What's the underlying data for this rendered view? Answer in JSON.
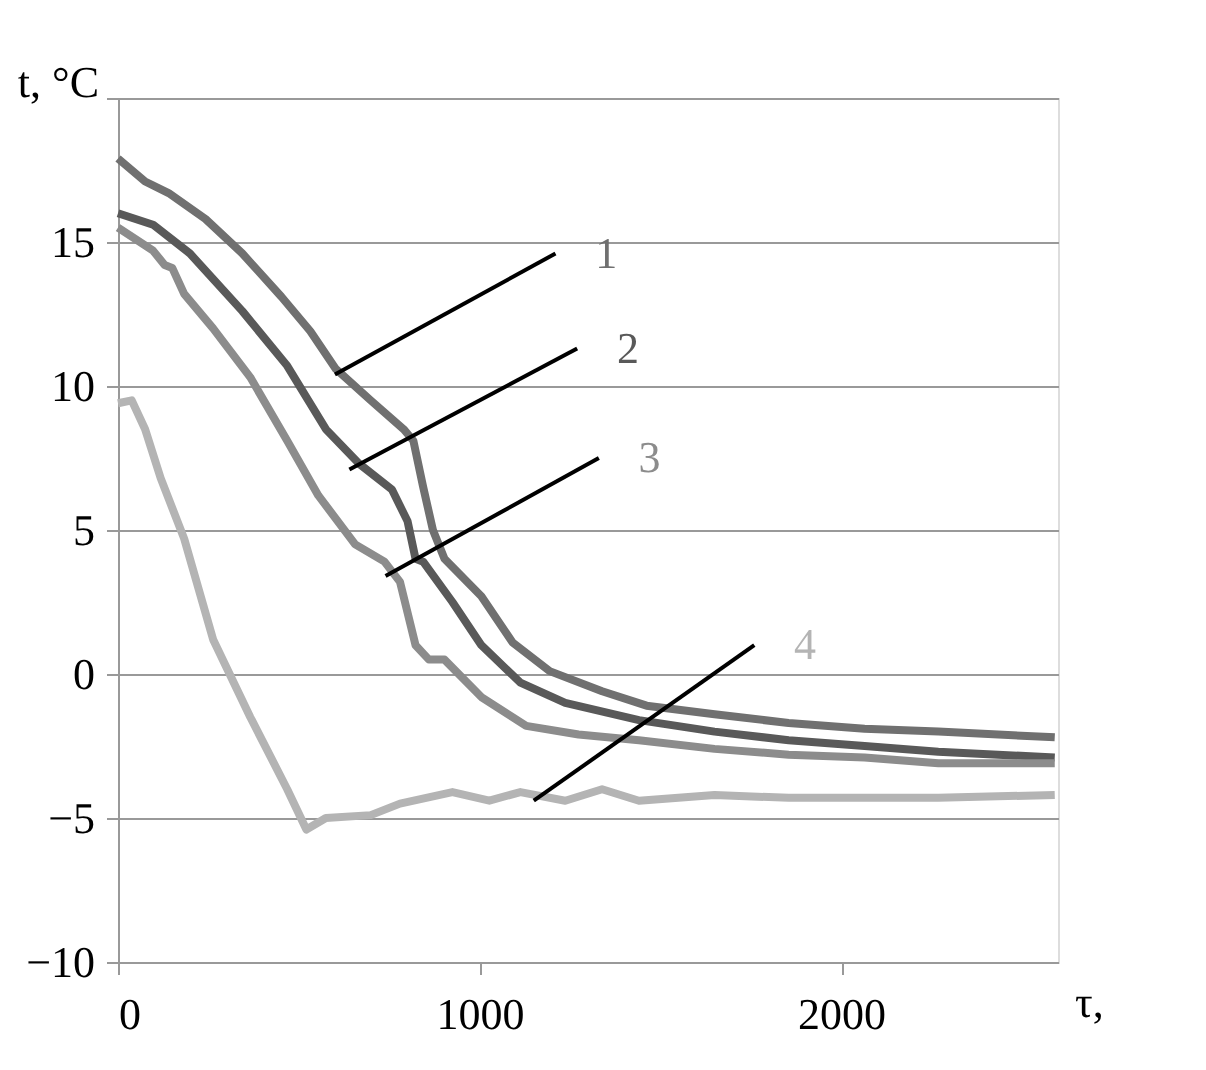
{
  "chart_data": {
    "type": "line",
    "xlabel": "τ,",
    "ylabel": "t, °C",
    "xlim": [
      0,
      2600
    ],
    "xticks": [
      0,
      1000,
      2000
    ],
    "ylim": [
      -10,
      20
    ],
    "yticks": [
      -10,
      -5,
      0,
      5,
      10,
      15,
      {
        "value": 20,
        "label": null
      }
    ],
    "grid": "y",
    "legend": false,
    "marker": "none",
    "line_style": "solid",
    "series": [
      {
        "name": "1",
        "color": "#707070",
        "x": [
          0,
          75,
          140,
          242,
          344,
          452,
          532,
          602,
          699,
          790,
          817,
          844,
          871,
          903,
          1005,
          1091,
          1194,
          1339,
          1462,
          1650,
          1855,
          2065,
          2269,
          2591
        ],
        "values": [
          17.9,
          17.1,
          16.7,
          15.8,
          14.6,
          13.1,
          11.9,
          10.6,
          9.5,
          8.5,
          8.1,
          6.5,
          5.0,
          4.0,
          2.7,
          1.1,
          0.1,
          -0.6,
          -1.1,
          -1.4,
          -1.7,
          -1.9,
          -2.0,
          -2.2
        ]
      },
      {
        "name": "2",
        "color": "#595959",
        "x": [
          0,
          97,
          199,
          344,
          468,
          575,
          667,
          758,
          801,
          823,
          844,
          925,
          1005,
          1113,
          1237,
          1441,
          1650,
          1855,
          2065,
          2269,
          2591
        ],
        "values": [
          16.0,
          15.6,
          14.6,
          12.6,
          10.7,
          8.5,
          7.3,
          6.4,
          5.3,
          4.0,
          3.9,
          2.5,
          1.0,
          -0.3,
          -1.0,
          -1.6,
          -2.0,
          -2.3,
          -2.5,
          -2.7,
          -2.9
        ]
      },
      {
        "name": "3",
        "color": "#8c8c8c",
        "x": [
          0,
          97,
          129,
          150,
          183,
          263,
          366,
          468,
          554,
          656,
          737,
          780,
          823,
          860,
          903,
          1005,
          1129,
          1274,
          1441,
          1650,
          1855,
          2065,
          2269,
          2591
        ],
        "values": [
          15.5,
          14.7,
          14.2,
          14.1,
          13.2,
          12.0,
          10.3,
          8.1,
          6.2,
          4.5,
          3.9,
          3.2,
          1.0,
          0.5,
          0.5,
          -0.8,
          -1.8,
          -2.1,
          -2.3,
          -2.6,
          -2.8,
          -2.9,
          -3.1,
          -3.1
        ]
      },
      {
        "name": "4",
        "color": "#b4b4b4",
        "x": [
          0,
          38,
          75,
          118,
          183,
          263,
          366,
          468,
          521,
          575,
          699,
          780,
          925,
          1027,
          1113,
          1237,
          1339,
          1441,
          1650,
          1855,
          2269,
          2591
        ],
        "values": [
          9.4,
          9.5,
          8.5,
          6.8,
          4.7,
          1.2,
          -1.5,
          -4.0,
          -5.4,
          -5.0,
          -4.9,
          -4.5,
          -4.1,
          -4.4,
          -4.1,
          -4.4,
          -4.0,
          -4.4,
          -4.2,
          -4.3,
          -4.3,
          -4.2
        ]
      }
    ]
  }
}
